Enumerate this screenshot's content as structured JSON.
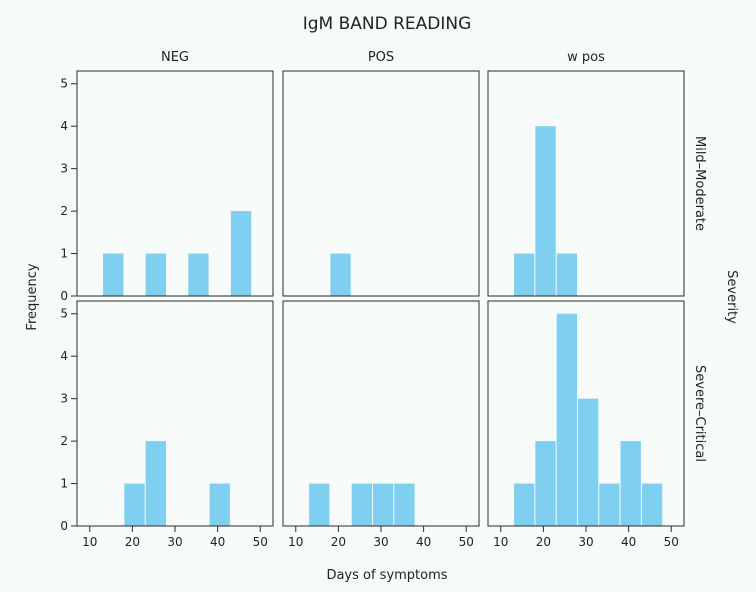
{
  "chart_data": {
    "type": "bar",
    "title": "IgM BAND READING",
    "xlabel": "Days of symptoms",
    "ylabel": "Frequency",
    "row_facet_label": "Severity",
    "columns": [
      "NEG",
      "POS",
      "w pos"
    ],
    "rows": [
      "Mild–Moderate",
      "Severe–Critical"
    ],
    "xlim": [
      7,
      53
    ],
    "ylim": [
      0,
      5.3
    ],
    "xticks": [
      10,
      20,
      30,
      40,
      50
    ],
    "yticks": [
      0,
      1,
      2,
      3,
      4,
      5
    ],
    "bin_width": 5,
    "bar_color": "#7fcff0",
    "panels": [
      {
        "row": "Mild–Moderate",
        "column": "NEG",
        "bars": [
          {
            "x": 15.5,
            "y": 1
          },
          {
            "x": 25.5,
            "y": 1
          },
          {
            "x": 35.5,
            "y": 1
          },
          {
            "x": 45.5,
            "y": 2
          }
        ]
      },
      {
        "row": "Mild–Moderate",
        "column": "POS",
        "bars": [
          {
            "x": 20.5,
            "y": 1
          }
        ]
      },
      {
        "row": "Mild–Moderate",
        "column": "w pos",
        "bars": [
          {
            "x": 15.5,
            "y": 1
          },
          {
            "x": 20.5,
            "y": 4
          },
          {
            "x": 25.5,
            "y": 1
          }
        ]
      },
      {
        "row": "Severe–Critical",
        "column": "NEG",
        "bars": [
          {
            "x": 20.5,
            "y": 1
          },
          {
            "x": 25.5,
            "y": 2
          },
          {
            "x": 40.5,
            "y": 1
          }
        ]
      },
      {
        "row": "Severe–Critical",
        "column": "POS",
        "bars": [
          {
            "x": 15.5,
            "y": 1
          },
          {
            "x": 25.5,
            "y": 1
          },
          {
            "x": 30.5,
            "y": 1
          },
          {
            "x": 35.5,
            "y": 1
          }
        ]
      },
      {
        "row": "Severe–Critical",
        "column": "w pos",
        "bars": [
          {
            "x": 15.5,
            "y": 1
          },
          {
            "x": 20.5,
            "y": 2
          },
          {
            "x": 25.5,
            "y": 5
          },
          {
            "x": 30.5,
            "y": 3
          },
          {
            "x": 35.5,
            "y": 1
          },
          {
            "x": 40.5,
            "y": 2
          },
          {
            "x": 45.5,
            "y": 1
          }
        ]
      }
    ]
  }
}
